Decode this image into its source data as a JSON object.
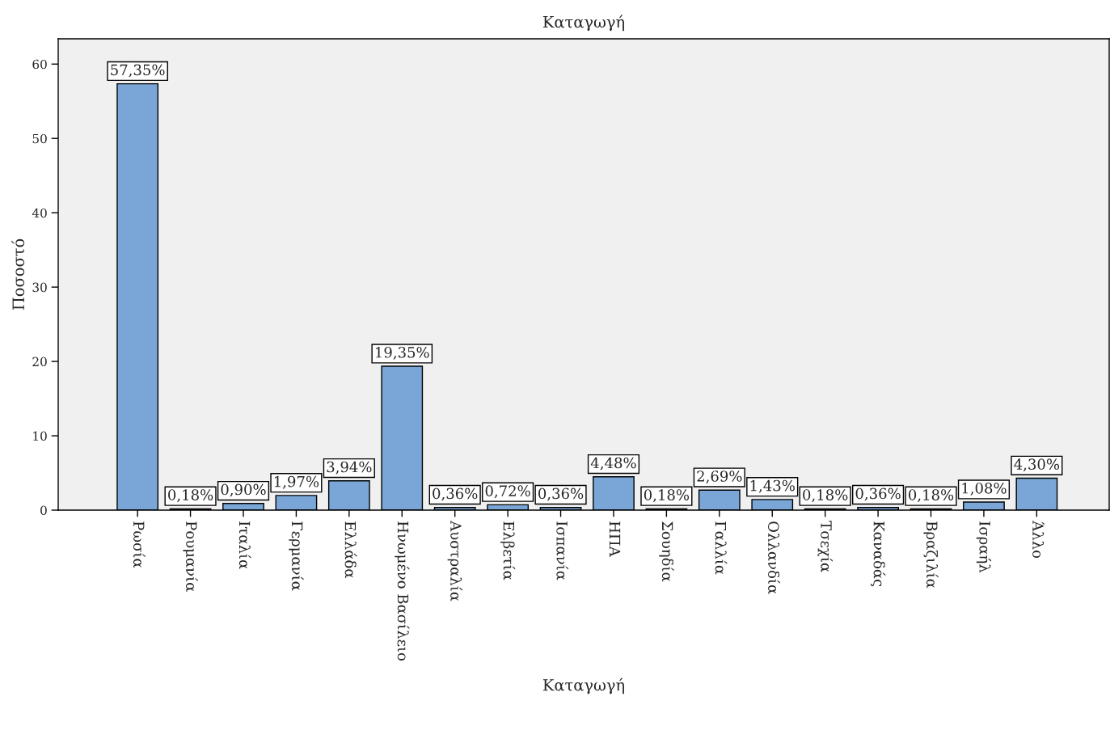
{
  "chart_data": {
    "type": "bar",
    "title": "Καταγωγή",
    "xlabel": "Καταγωγή",
    "ylabel": "Ποσοστό",
    "categories": [
      "Ρωσία",
      "Ρουμανία",
      "Ιταλία",
      "Γερμανία",
      "Ελλάδα",
      "Ηνωμένο Βασίλειο",
      "Αυστραλία",
      "Ελβετία",
      "Ισπανία",
      "ΗΠΑ",
      "Σουηδία",
      "Γαλλία",
      "Ολλανδία",
      "Τσεχία",
      "Καναδάς",
      "Βραζιλία",
      "Ισραήλ",
      "Άλλο"
    ],
    "values": [
      57.35,
      0.18,
      0.9,
      1.97,
      3.94,
      19.35,
      0.36,
      0.72,
      0.36,
      4.48,
      0.18,
      2.69,
      1.43,
      0.18,
      0.36,
      0.18,
      1.08,
      4.3
    ],
    "value_labels": [
      "57,35%",
      "0,18%",
      "0,90%",
      "1,97%",
      "3,94%",
      "19,35%",
      "0,36%",
      "0,72%",
      "0,36%",
      "4,48%",
      "0,18%",
      "2,69%",
      "1,43%",
      "0,18%",
      "0,36%",
      "0,18%",
      "1,08%",
      "4,30%"
    ],
    "color": "#79a6d6",
    "ylim": [
      0,
      63.4
    ],
    "yticks": [
      0,
      10,
      20,
      30,
      40,
      50,
      60
    ],
    "grid": false,
    "legend": false
  }
}
